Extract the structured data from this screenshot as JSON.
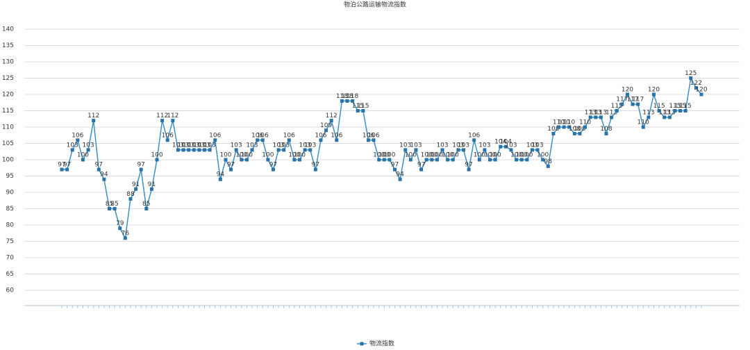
{
  "chart_data": {
    "type": "line",
    "title": "物泊公路运输物流指数",
    "categories": [
      null,
      null,
      null,
      null,
      null,
      null,
      null,
      null,
      null,
      null,
      null,
      null,
      null,
      null,
      null,
      null,
      null,
      null,
      null,
      null,
      null,
      null,
      null,
      null,
      null,
      null,
      null,
      null,
      null,
      null,
      null,
      null,
      null,
      null,
      null,
      null,
      null,
      null,
      null,
      null,
      null,
      null,
      null,
      null,
      null,
      null,
      null,
      null,
      null,
      null,
      null,
      null,
      null,
      null,
      null,
      null,
      null,
      null,
      null,
      null,
      null,
      null,
      null,
      null,
      null,
      null,
      null,
      null,
      null,
      null,
      null,
      null,
      null,
      null,
      null,
      null,
      null,
      null,
      null,
      null,
      null,
      null,
      null,
      null,
      null,
      null,
      null,
      null,
      null,
      null,
      null,
      null,
      null,
      null,
      null,
      null,
      null,
      null,
      null,
      null,
      null,
      null,
      null,
      null,
      null,
      null,
      null,
      null,
      null,
      null,
      null,
      null,
      null,
      null,
      null,
      null,
      null,
      null,
      null,
      null,
      null,
      null
    ],
    "series": [
      {
        "name": "物流指数",
        "color": "#3d8fc4",
        "values": [
          97,
          97,
          103,
          106,
          100,
          103,
          112,
          97,
          94,
          85,
          85,
          79,
          76,
          88,
          91,
          97,
          85,
          91,
          100,
          112,
          106,
          112,
          103,
          103,
          103,
          103,
          103,
          103,
          103,
          106,
          94,
          100,
          97,
          103,
          100,
          100,
          103,
          106,
          106,
          100,
          97,
          103,
          103,
          106,
          100,
          100,
          103,
          103,
          97,
          106,
          109,
          112,
          106,
          118,
          118,
          118,
          115,
          115,
          106,
          106,
          100,
          100,
          100,
          97,
          94,
          103,
          100,
          103,
          97,
          100,
          100,
          100,
          103,
          100,
          100,
          103,
          103,
          97,
          106,
          100,
          103,
          100,
          100,
          104,
          104,
          103,
          100,
          100,
          100,
          103,
          103,
          100,
          98,
          108,
          110,
          110,
          110,
          108,
          108,
          110,
          113,
          113,
          113,
          108,
          113,
          115,
          117,
          120,
          117,
          117,
          110,
          113,
          120,
          115,
          113,
          113,
          115,
          115,
          115,
          125,
          122,
          120
        ]
      }
    ],
    "ylim": [
      55,
      140
    ],
    "yticks": [
      60,
      65,
      70,
      75,
      80,
      85,
      90,
      95,
      100,
      105,
      110,
      115,
      120,
      125,
      130,
      135,
      140
    ],
    "grid": true,
    "legend": "bottom"
  }
}
